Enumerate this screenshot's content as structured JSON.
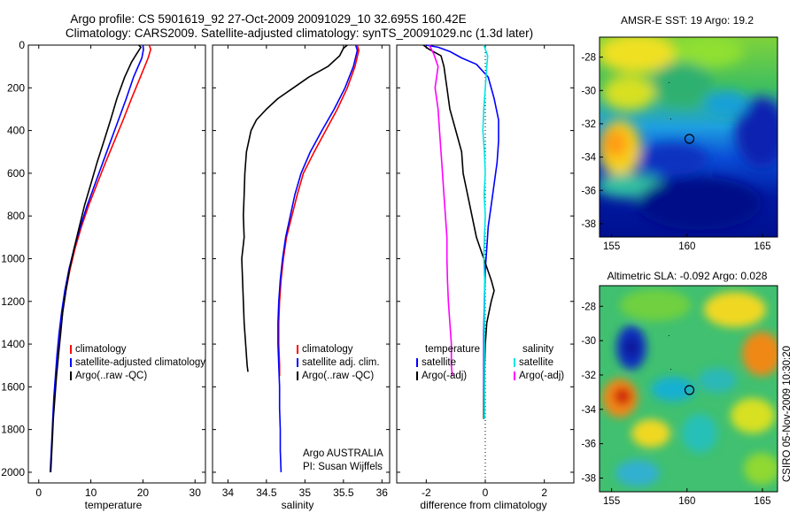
{
  "header": {
    "line1": "Argo profile: CS 5901619_92 27-Oct-2009 20091029_10 32.695S 160.42E",
    "line2": "Climatology: CARS2009. Satellite-adjusted climatology: synTS_20091029.nc (1.3d later)"
  },
  "footer": {
    "agency": "Argo AUSTRALIA",
    "pi": "PI: Susan Wijffels",
    "stamp": "CSIRO 05-Nov-2009 10:30:20"
  },
  "colors": {
    "climatology": "#ff0000",
    "satellite": "#0000ff",
    "argo": "#000000",
    "sat_salinity": "#00e5e5",
    "argo_salinity": "#ff00ff"
  },
  "chart_data": [
    {
      "type": "line",
      "title": "",
      "xlabel": "temperature",
      "ylabel": "",
      "xlim": [
        -2,
        32
      ],
      "ylim": [
        0,
        2050
      ],
      "y_reversed": true,
      "xticks": [
        "0",
        "10",
        "20",
        "30"
      ],
      "yticks": [
        "0",
        "200",
        "400",
        "600",
        "800",
        "1000",
        "1200",
        "1400",
        "1600",
        "1800",
        "2000"
      ],
      "legend_placement": "lower-right",
      "legend": [
        "climatology",
        "satellite-adjusted climatology",
        "Argo(..raw -QC)"
      ],
      "series": [
        {
          "name": "climatology",
          "color": "#ff0000",
          "points": [
            [
              21.2,
              0
            ],
            [
              21.5,
              20
            ],
            [
              21.0,
              60
            ],
            [
              19.5,
              150
            ],
            [
              17.8,
              250
            ],
            [
              16.2,
              350
            ],
            [
              14.5,
              450
            ],
            [
              12.8,
              550
            ],
            [
              11.2,
              650
            ],
            [
              9.6,
              750
            ],
            [
              8.2,
              850
            ],
            [
              7.0,
              950
            ],
            [
              6.0,
              1050
            ],
            [
              5.2,
              1150
            ],
            [
              4.6,
              1250
            ],
            [
              4.1,
              1350
            ],
            [
              3.7,
              1450
            ]
          ]
        },
        {
          "name": "satellite-adjusted climatology",
          "color": "#0000ff",
          "points": [
            [
              20.0,
              0
            ],
            [
              20.1,
              20
            ],
            [
              19.8,
              60
            ],
            [
              18.2,
              150
            ],
            [
              16.8,
              250
            ],
            [
              15.3,
              350
            ],
            [
              13.8,
              450
            ],
            [
              12.3,
              550
            ],
            [
              10.8,
              650
            ],
            [
              9.3,
              750
            ],
            [
              8.0,
              850
            ],
            [
              6.8,
              950
            ],
            [
              5.8,
              1050
            ],
            [
              5.0,
              1150
            ],
            [
              4.4,
              1250
            ],
            [
              3.9,
              1350
            ],
            [
              3.5,
              1450
            ],
            [
              3.2,
              1550
            ],
            [
              2.9,
              1650
            ],
            [
              2.7,
              1750
            ],
            [
              2.5,
              1850
            ],
            [
              2.3,
              1950
            ],
            [
              2.2,
              2000
            ]
          ]
        },
        {
          "name": "Argo(..raw -QC)",
          "color": "#000000",
          "points": [
            [
              19.2,
              0
            ],
            [
              19.6,
              10
            ],
            [
              18.8,
              40
            ],
            [
              17.8,
              80
            ],
            [
              16.5,
              150
            ],
            [
              15.0,
              250
            ],
            [
              13.8,
              350
            ],
            [
              12.5,
              450
            ],
            [
              11.2,
              550
            ],
            [
              10.0,
              650
            ],
            [
              8.8,
              750
            ],
            [
              7.8,
              850
            ],
            [
              6.8,
              950
            ],
            [
              5.9,
              1050
            ],
            [
              5.2,
              1150
            ],
            [
              4.6,
              1250
            ],
            [
              4.2,
              1350
            ],
            [
              3.8,
              1450
            ],
            [
              3.4,
              1550
            ],
            [
              3.1,
              1650
            ],
            [
              2.8,
              1750
            ],
            [
              2.6,
              1850
            ],
            [
              2.4,
              1950
            ],
            [
              2.3,
              2000
            ]
          ]
        }
      ]
    },
    {
      "type": "line",
      "title": "",
      "xlabel": "salinity",
      "ylabel": "",
      "xlim": [
        33.8,
        36.1
      ],
      "ylim": [
        0,
        2050
      ],
      "y_reversed": true,
      "xticks": [
        "34",
        "34.5",
        "35",
        "35.5",
        "36"
      ],
      "legend_placement": "lower-right",
      "legend": [
        "climatology",
        "satellite adj. clim.",
        "Argo(..raw -QC)"
      ],
      "series": [
        {
          "name": "climatology",
          "color": "#ff0000",
          "points": [
            [
              35.68,
              0
            ],
            [
              35.7,
              25
            ],
            [
              35.65,
              100
            ],
            [
              35.55,
              200
            ],
            [
              35.42,
              300
            ],
            [
              35.27,
              400
            ],
            [
              35.12,
              500
            ],
            [
              34.98,
              600
            ],
            [
              34.9,
              700
            ],
            [
              34.83,
              800
            ],
            [
              34.76,
              900
            ],
            [
              34.72,
              1000
            ],
            [
              34.69,
              1100
            ],
            [
              34.67,
              1200
            ],
            [
              34.66,
              1300
            ],
            [
              34.66,
              1400
            ],
            [
              34.67,
              1500
            ],
            [
              34.67,
              1550
            ]
          ]
        },
        {
          "name": "satellite adj. clim.",
          "color": "#0000ff",
          "points": [
            [
              35.66,
              0
            ],
            [
              35.68,
              25
            ],
            [
              35.63,
              100
            ],
            [
              35.52,
              200
            ],
            [
              35.38,
              300
            ],
            [
              35.22,
              400
            ],
            [
              35.07,
              500
            ],
            [
              34.95,
              600
            ],
            [
              34.87,
              700
            ],
            [
              34.81,
              800
            ],
            [
              34.75,
              900
            ],
            [
              34.71,
              1000
            ],
            [
              34.68,
              1100
            ],
            [
              34.66,
              1200
            ],
            [
              34.65,
              1300
            ],
            [
              34.65,
              1400
            ],
            [
              34.66,
              1500
            ],
            [
              34.67,
              1600
            ],
            [
              34.67,
              1700
            ],
            [
              34.68,
              1800
            ],
            [
              34.68,
              1900
            ],
            [
              34.69,
              2000
            ]
          ]
        },
        {
          "name": "Argo(..raw -QC)",
          "color": "#000000",
          "points": [
            [
              35.55,
              0
            ],
            [
              35.5,
              15
            ],
            [
              35.45,
              50
            ],
            [
              35.3,
              100
            ],
            [
              35.05,
              150
            ],
            [
              34.85,
              200
            ],
            [
              34.65,
              250
            ],
            [
              34.5,
              300
            ],
            [
              34.37,
              350
            ],
            [
              34.3,
              400
            ],
            [
              34.24,
              500
            ],
            [
              34.22,
              600
            ],
            [
              34.21,
              700
            ],
            [
              34.2,
              800
            ],
            [
              34.21,
              900
            ],
            [
              34.18,
              1000
            ],
            [
              34.19,
              1100
            ],
            [
              34.2,
              1200
            ],
            [
              34.21,
              1300
            ],
            [
              34.23,
              1400
            ],
            [
              34.25,
              1500
            ],
            [
              34.26,
              1530
            ]
          ]
        }
      ]
    },
    {
      "type": "line",
      "title": "",
      "xlabel": "difference from climatology",
      "ylabel": "",
      "xlim": [
        -3.0,
        3.0
      ],
      "ylim": [
        0,
        2050
      ],
      "y_reversed": true,
      "xticks": [
        "-2",
        "0",
        "2"
      ],
      "legend_placement": "lower-right",
      "legend": [
        "temperature",
        "satellite",
        "Argo(-adj)",
        "salinity",
        "satellite",
        "Argo(-adj)"
      ],
      "series": [
        {
          "name": "satellite",
          "color": "#0000ff",
          "points": [
            [
              -2.0,
              0
            ],
            [
              -1.6,
              10
            ],
            [
              -1.2,
              30
            ],
            [
              -0.8,
              60
            ],
            [
              -0.3,
              90
            ],
            [
              0.1,
              150
            ],
            [
              0.3,
              250
            ],
            [
              0.45,
              350
            ],
            [
              0.45,
              450
            ],
            [
              0.4,
              550
            ],
            [
              0.3,
              650
            ],
            [
              0.2,
              750
            ],
            [
              0.1,
              850
            ],
            [
              0.05,
              950
            ],
            [
              0.0,
              1050
            ],
            [
              -0.02,
              1150
            ],
            [
              -0.04,
              1250
            ],
            [
              -0.05,
              1350
            ],
            [
              -0.05,
              1450
            ],
            [
              -0.05,
              1550
            ],
            [
              -0.05,
              1650
            ],
            [
              -0.05,
              1750
            ]
          ]
        },
        {
          "name": "Argo(-adj)",
          "color": "#000000",
          "points": [
            [
              -2.1,
              0
            ],
            [
              -1.9,
              20
            ],
            [
              -1.5,
              50
            ],
            [
              -1.4,
              100
            ],
            [
              -1.3,
              200
            ],
            [
              -1.2,
              300
            ],
            [
              -1.0,
              400
            ],
            [
              -0.8,
              500
            ],
            [
              -0.75,
              600
            ],
            [
              -0.6,
              700
            ],
            [
              -0.45,
              800
            ],
            [
              -0.3,
              900
            ],
            [
              -0.05,
              1000
            ],
            [
              0.2,
              1100
            ],
            [
              0.3,
              1150
            ],
            [
              0.2,
              1200
            ],
            [
              0.05,
              1300
            ],
            [
              0.0,
              1400
            ],
            [
              -0.02,
              1500
            ],
            [
              -0.04,
              1600
            ],
            [
              -0.05,
              1700
            ],
            [
              -0.05,
              1750
            ]
          ]
        },
        {
          "name": "satellite",
          "color": "#00e5e5",
          "points": [
            [
              -0.05,
              0
            ],
            [
              0.08,
              50
            ],
            [
              0.05,
              100
            ],
            [
              0.0,
              200
            ],
            [
              -0.05,
              300
            ],
            [
              -0.08,
              400
            ],
            [
              -0.03,
              500
            ],
            [
              0.0,
              600
            ],
            [
              -0.04,
              700
            ],
            [
              0.0,
              800
            ],
            [
              -0.03,
              900
            ],
            [
              -0.05,
              1000
            ],
            [
              -0.02,
              1100
            ],
            [
              -0.03,
              1200
            ],
            [
              -0.03,
              1300
            ],
            [
              -0.03,
              1400
            ],
            [
              -0.03,
              1500
            ],
            [
              -0.03,
              1600
            ],
            [
              -0.03,
              1700
            ],
            [
              -0.03,
              1750
            ]
          ]
        },
        {
          "name": "Argo(-adj)",
          "color": "#ff00ff",
          "points": [
            [
              -1.9,
              0
            ],
            [
              -1.75,
              40
            ],
            [
              -1.6,
              100
            ],
            [
              -1.7,
              200
            ],
            [
              -1.6,
              300
            ],
            [
              -1.55,
              400
            ],
            [
              -1.5,
              500
            ],
            [
              -1.45,
              600
            ],
            [
              -1.4,
              700
            ],
            [
              -1.35,
              800
            ],
            [
              -1.3,
              900
            ],
            [
              -1.3,
              1000
            ],
            [
              -1.28,
              1100
            ],
            [
              -1.25,
              1200
            ],
            [
              -1.2,
              1300
            ],
            [
              -1.15,
              1400
            ],
            [
              -1.15,
              1500
            ],
            [
              -1.12,
              1550
            ]
          ]
        }
      ]
    },
    {
      "type": "heatmap",
      "title": "AMSR-E SST: 19 Argo: 19.2",
      "xticks": [
        "155",
        "160",
        "165"
      ],
      "yticks": [
        "-28",
        "-30",
        "-32",
        "-34",
        "-36",
        "-38"
      ],
      "lon_range": [
        154.2,
        166.0
      ],
      "lat_range": [
        -38.8,
        -26.8
      ],
      "marker": {
        "lon": 160.42,
        "lat": -32.695
      }
    },
    {
      "type": "heatmap",
      "title": "Altimetric SLA: -0.092 Argo: 0.028",
      "xticks": [
        "155",
        "160",
        "165"
      ],
      "yticks": [
        "-28",
        "-30",
        "-32",
        "-34",
        "-36",
        "-38"
      ],
      "lon_range": [
        154.2,
        166.0
      ],
      "lat_range": [
        -38.8,
        -26.8
      ],
      "marker": {
        "lon": 160.42,
        "lat": -32.695
      }
    }
  ]
}
